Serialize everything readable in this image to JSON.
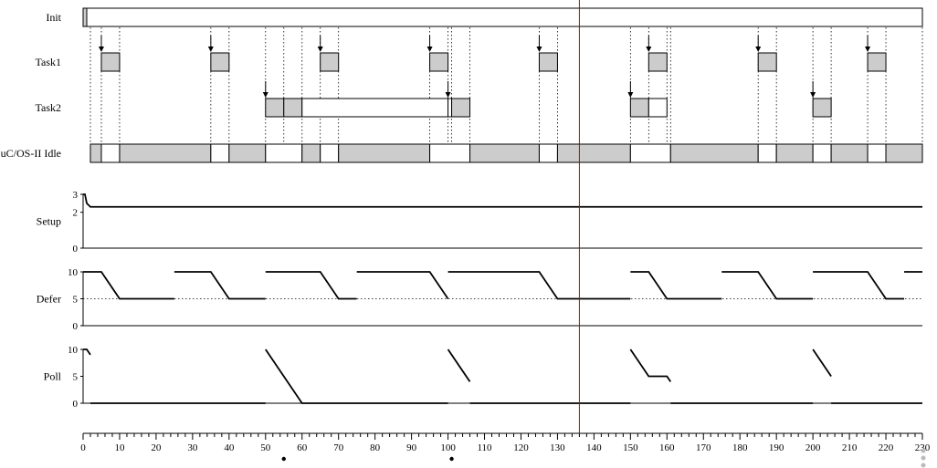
{
  "chart_data": {
    "type": "timing-diagram",
    "title": "",
    "x_axis": {
      "min": 0,
      "max": 230,
      "tick_step": 10,
      "minor_step": 2,
      "tick_labels": [
        "0",
        "10",
        "20",
        "30",
        "40",
        "50",
        "60",
        "70",
        "80",
        "90",
        "100",
        "110",
        "120",
        "130",
        "140",
        "150",
        "160",
        "170",
        "180",
        "190",
        "200",
        "210",
        "220",
        "230"
      ]
    },
    "cursor_time": 136,
    "cursor_color": "#c00000",
    "bookmarks": [
      55,
      101
    ],
    "fill_colors": {
      "running": "#cccccc",
      "ready": "#ffffff"
    },
    "tasks": [
      {
        "name": "Init",
        "segments": [
          {
            "start": 0,
            "end": 1,
            "state": "running"
          },
          {
            "start": 1,
            "end": 230,
            "state": "ready"
          }
        ],
        "arrivals": []
      },
      {
        "name": "Task1",
        "segments": [
          {
            "start": 5,
            "end": 10,
            "state": "running"
          },
          {
            "start": 35,
            "end": 40,
            "state": "running"
          },
          {
            "start": 65,
            "end": 70,
            "state": "running"
          },
          {
            "start": 95,
            "end": 100,
            "state": "running"
          },
          {
            "start": 125,
            "end": 130,
            "state": "running"
          },
          {
            "start": 155,
            "end": 160,
            "state": "running"
          },
          {
            "start": 185,
            "end": 190,
            "state": "running"
          },
          {
            "start": 215,
            "end": 220,
            "state": "running"
          }
        ],
        "arrivals": [
          5,
          35,
          65,
          95,
          125,
          155,
          185,
          215
        ]
      },
      {
        "name": "Task2",
        "segments": [
          {
            "start": 50,
            "end": 55,
            "state": "running"
          },
          {
            "start": 55,
            "end": 60,
            "state": "running"
          },
          {
            "start": 60,
            "end": 100,
            "state": "ready"
          },
          {
            "start": 100,
            "end": 101,
            "state": "ready"
          },
          {
            "start": 101,
            "end": 106,
            "state": "running"
          },
          {
            "start": 150,
            "end": 155,
            "state": "running"
          },
          {
            "start": 155,
            "end": 160,
            "state": "ready"
          },
          {
            "start": 200,
            "end": 205,
            "state": "running"
          }
        ],
        "arrivals": [
          50,
          100,
          150,
          200
        ]
      },
      {
        "name": "uC/OS-II Idle",
        "segments": [
          {
            "start": 2,
            "end": 5,
            "state": "running"
          },
          {
            "start": 5,
            "end": 10,
            "state": "ready"
          },
          {
            "start": 10,
            "end": 35,
            "state": "running"
          },
          {
            "start": 35,
            "end": 40,
            "state": "ready"
          },
          {
            "start": 40,
            "end": 50,
            "state": "running"
          },
          {
            "start": 50,
            "end": 60,
            "state": "ready"
          },
          {
            "start": 60,
            "end": 65,
            "state": "running"
          },
          {
            "start": 65,
            "end": 70,
            "state": "ready"
          },
          {
            "start": 70,
            "end": 95,
            "state": "running"
          },
          {
            "start": 95,
            "end": 106,
            "state": "ready"
          },
          {
            "start": 106,
            "end": 125,
            "state": "running"
          },
          {
            "start": 125,
            "end": 130,
            "state": "ready"
          },
          {
            "start": 130,
            "end": 150,
            "state": "running"
          },
          {
            "start": 150,
            "end": 161,
            "state": "ready"
          },
          {
            "start": 161,
            "end": 185,
            "state": "running"
          },
          {
            "start": 185,
            "end": 190,
            "state": "ready"
          },
          {
            "start": 190,
            "end": 200,
            "state": "running"
          },
          {
            "start": 200,
            "end": 205,
            "state": "ready"
          },
          {
            "start": 205,
            "end": 215,
            "state": "running"
          },
          {
            "start": 215,
            "end": 220,
            "state": "ready"
          },
          {
            "start": 220,
            "end": 230,
            "state": "running"
          }
        ],
        "arrivals": []
      }
    ],
    "signals": [
      {
        "name": "Setup",
        "ylim": [
          0,
          3
        ],
        "y_ticks": [
          0,
          2,
          3
        ],
        "segments": [
          [
            [
              0,
              3
            ],
            [
              0.5,
              3
            ],
            [
              1,
              2.5
            ],
            [
              2,
              2.3
            ],
            [
              230,
              2.3
            ]
          ]
        ],
        "dotted": []
      },
      {
        "name": "Defer",
        "ylim": [
          0,
          10
        ],
        "y_ticks": [
          0,
          5,
          10
        ],
        "segments": [
          [
            [
              0,
              10
            ],
            [
              5,
              10
            ],
            [
              10,
              5
            ],
            [
              25,
              5
            ]
          ],
          [
            [
              25,
              10
            ],
            [
              35,
              10
            ],
            [
              40,
              5
            ],
            [
              50,
              5
            ]
          ],
          [
            [
              50,
              10
            ],
            [
              65,
              10
            ],
            [
              70,
              5
            ],
            [
              75,
              5
            ]
          ],
          [
            [
              75,
              10
            ],
            [
              95,
              10
            ],
            [
              100,
              5
            ]
          ],
          [
            [
              100,
              10
            ],
            [
              125,
              10
            ],
            [
              130,
              5
            ],
            [
              150,
              5
            ]
          ],
          [
            [
              150,
              10
            ],
            [
              155,
              10
            ],
            [
              160,
              5
            ],
            [
              175,
              5
            ]
          ],
          [
            [
              175,
              10
            ],
            [
              185,
              10
            ],
            [
              190,
              5
            ],
            [
              200,
              5
            ]
          ],
          [
            [
              200,
              10
            ],
            [
              215,
              10
            ],
            [
              220,
              5
            ],
            [
              225,
              5
            ]
          ],
          [
            [
              225,
              10
            ],
            [
              230,
              10
            ]
          ]
        ],
        "dotted": [
          [
            0,
            5
          ],
          [
            230,
            5
          ]
        ]
      },
      {
        "name": "Poll",
        "ylim": [
          0,
          10
        ],
        "y_ticks": [
          0,
          5,
          10
        ],
        "segments": [
          [
            [
              0,
              10
            ],
            [
              1,
              10
            ],
            [
              2,
              9
            ]
          ],
          [
            [
              2,
              0
            ],
            [
              50,
              0
            ]
          ],
          [
            [
              50,
              10
            ],
            [
              60,
              0
            ],
            [
              100,
              0
            ]
          ],
          [
            [
              100,
              10
            ],
            [
              106,
              4
            ]
          ],
          [
            [
              106,
              0
            ],
            [
              150,
              0
            ]
          ],
          [
            [
              150,
              10
            ],
            [
              155,
              5
            ],
            [
              160,
              5
            ],
            [
              161,
              4
            ]
          ],
          [
            [
              161,
              0
            ],
            [
              200,
              0
            ]
          ],
          [
            [
              200,
              10
            ],
            [
              205,
              5
            ]
          ],
          [
            [
              205,
              0
            ],
            [
              230,
              0
            ]
          ]
        ],
        "dotted": []
      }
    ]
  }
}
